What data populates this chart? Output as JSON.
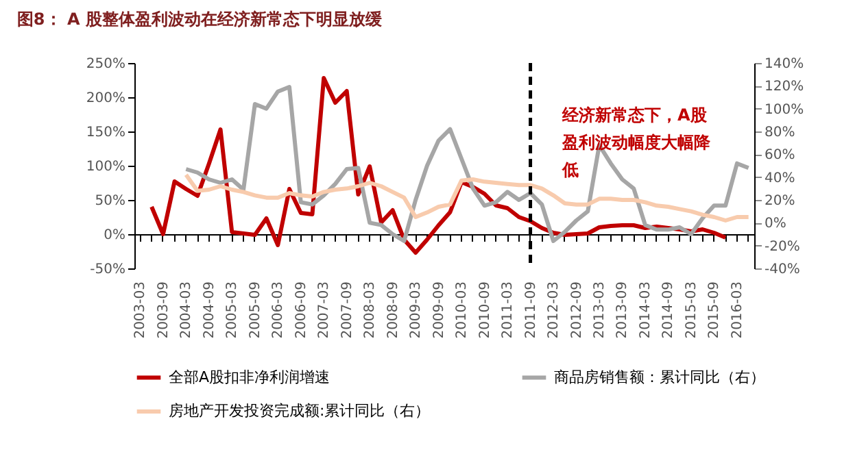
{
  "chart_data": {
    "type": "line",
    "title": "图8： A 股整体盈利波动在经济新常态下明显放缓",
    "categories": [
      "2003-03",
      null,
      "2003-09",
      null,
      "2004-03",
      null,
      "2004-09",
      null,
      "2005-03",
      null,
      "2005-09",
      null,
      "2006-03",
      null,
      "2006-09",
      null,
      "2007-03",
      null,
      "2007-09",
      null,
      "2008-03",
      null,
      "2008-09",
      null,
      "2009-03",
      null,
      "2009-09",
      null,
      "2010-03",
      null,
      "2010-09",
      null,
      "2011-03",
      null,
      "2011-09",
      null,
      "2012-03",
      null,
      "2012-09",
      null,
      "2013-03",
      null,
      "2013-09",
      null,
      "2014-03",
      null,
      "2014-09",
      null,
      "2015-03",
      null,
      "2015-09",
      null,
      "2016-03",
      null
    ],
    "series": [
      {
        "name": "全部A股扣非净利润增速",
        "color": "#c00000",
        "values": [
          null,
          40,
          0,
          77,
          66,
          56,
          103,
          153,
          3,
          1,
          -1,
          23,
          -16,
          66,
          31,
          29,
          228,
          192,
          209,
          58,
          99,
          17,
          35,
          -8,
          -27,
          -8,
          13,
          32,
          76,
          69,
          59,
          42,
          38,
          25,
          19,
          9,
          2,
          -1,
          0,
          1,
          10,
          12,
          13,
          13,
          9,
          11,
          9,
          7,
          4,
          7,
          2,
          -5,
          null,
          null
        ]
      },
      {
        "name": "商品房销售额：累计同比（右）",
        "color": "#a6a6a6",
        "axis": "y2",
        "values": [
          null,
          null,
          null,
          null,
          47,
          44,
          38,
          35,
          38,
          29,
          104,
          100,
          115,
          119,
          18,
          16,
          24,
          34,
          47,
          48,
          0,
          -2,
          -10,
          -16,
          20,
          50,
          72,
          82,
          56,
          30,
          15,
          18,
          27,
          20,
          26,
          16,
          -16,
          -8,
          2,
          10,
          68,
          52,
          38,
          30,
          -2,
          -6,
          -6,
          -4,
          -10,
          4,
          15,
          15,
          52,
          48
        ]
      },
      {
        "name": "房地产开发投资完成额:累计同比（右）",
        "color": "#f8cbad",
        "axis": "y2",
        "values": [
          null,
          null,
          null,
          null,
          42,
          28,
          29,
          32,
          29,
          27,
          24,
          22,
          22,
          26,
          24,
          23,
          27,
          29,
          30,
          32,
          35,
          32,
          27,
          22,
          5,
          9,
          14,
          16,
          37,
          38,
          36,
          35,
          34,
          33,
          33,
          30,
          24,
          17,
          16,
          16,
          21,
          21,
          20,
          20,
          18,
          15,
          14,
          12,
          10,
          7,
          5,
          2,
          5,
          5
        ]
      }
    ],
    "ylim": [
      -50,
      250
    ],
    "yticks": [
      {
        "value": -50,
        "label": "-50%"
      },
      {
        "value": 0,
        "label": "0%"
      },
      {
        "value": 50,
        "label": "50%"
      },
      {
        "value": 100,
        "label": "100%"
      },
      {
        "value": 150,
        "label": "150%"
      },
      {
        "value": 200,
        "label": "200%"
      },
      {
        "value": 250,
        "label": "250%"
      }
    ],
    "y2lim": [
      -40,
      140
    ],
    "y2ticks": [
      {
        "value": -40,
        "label": "-40%"
      },
      {
        "value": -20,
        "label": "-20%"
      },
      {
        "value": 0,
        "label": "0%"
      },
      {
        "value": 20,
        "label": "20%"
      },
      {
        "value": 40,
        "label": "40%"
      },
      {
        "value": 60,
        "label": "60%"
      },
      {
        "value": 80,
        "label": "80%"
      },
      {
        "value": 100,
        "label": "100%"
      },
      {
        "value": 120,
        "label": "120%"
      },
      {
        "value": 140,
        "label": "140%"
      }
    ],
    "ref_lines": [
      {
        "axis": "x",
        "value": "2011-09",
        "color": "#000000",
        "line_style": "dashed"
      }
    ],
    "annotations": [
      "经济新常态下，A股盈利波动幅度大幅降低"
    ],
    "grid": false,
    "legend": "bottom"
  }
}
